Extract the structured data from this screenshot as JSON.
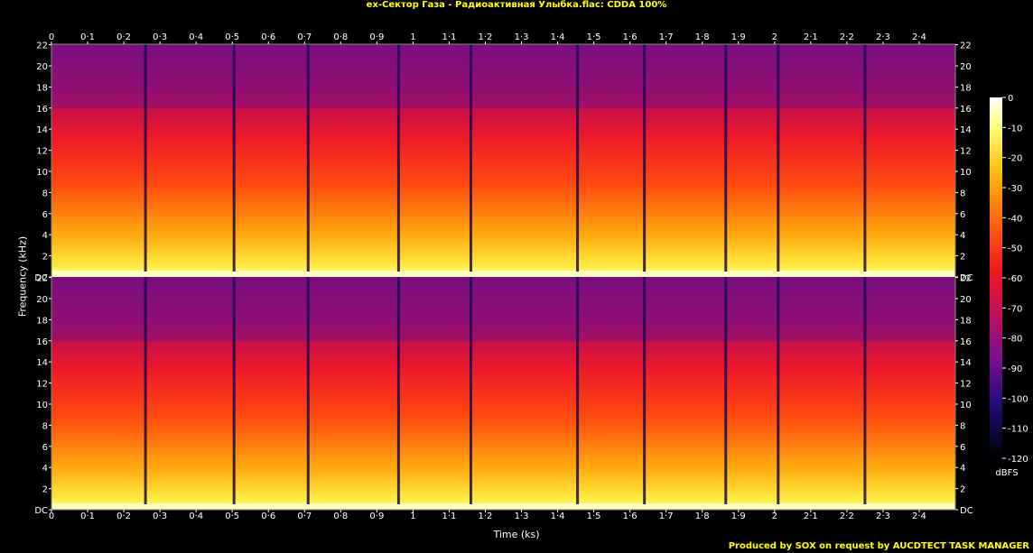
{
  "title": "ex-Сектор Газа - Радиоактивная Улыбка.flac: CDDA 100%",
  "footer": "Produced by SOX on request by AUCDTECT TASK MANAGER",
  "chart_data": {
    "type": "heatmap",
    "title": "ex-Сектор Газа - Радиоактивная Улыбка.flac: CDDA 100%",
    "xlabel": "Time (ks)",
    "ylabel": "Frequency (kHz)",
    "colorbar_label": "dBFS",
    "xlim": [
      0,
      2.5
    ],
    "ylim": [
      0,
      22.05
    ],
    "x_ticks": [
      "0",
      "0·1",
      "0·2",
      "0·3",
      "0·4",
      "0·5",
      "0·6",
      "0·7",
      "0·8",
      "0·9",
      "1",
      "1·1",
      "1·2",
      "1·3",
      "1·4",
      "1·5",
      "1·6",
      "1·7",
      "1·8",
      "1·9",
      "2",
      "2·1",
      "2·2",
      "2·3",
      "2·4"
    ],
    "y_ticks": [
      "DC",
      "2",
      "4",
      "6",
      "8",
      "10",
      "12",
      "14",
      "16",
      "18",
      "20",
      "22"
    ],
    "colorbar_ticks": [
      "0",
      "-10",
      "-20",
      "-30",
      "-40",
      "-50",
      "-60",
      "-70",
      "-80",
      "-90",
      "-100",
      "-110",
      "-120"
    ],
    "channels": [
      "left",
      "right"
    ],
    "track_boundaries_ks": [
      0.26,
      0.505,
      0.71,
      0.96,
      1.16,
      1.455,
      1.64,
      1.865,
      2.01,
      2.25
    ],
    "cutoff_khz": 16
  }
}
